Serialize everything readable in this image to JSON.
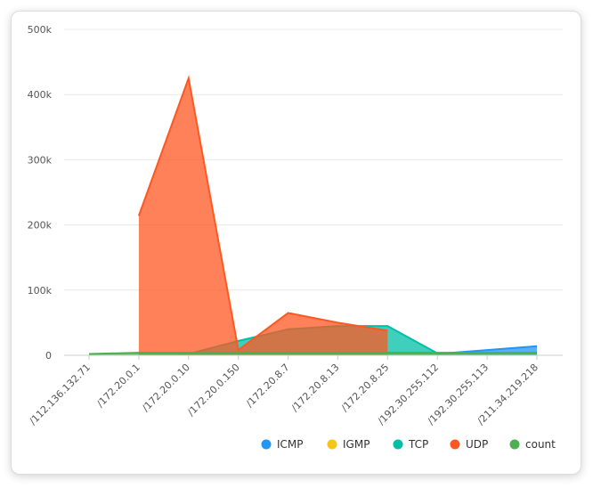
{
  "chart_data": {
    "type": "area",
    "categories": [
      "/112.136.132.71",
      "/172.20.0.1",
      "/172.20.0.10",
      "/172.20.0.150",
      "/172.20.8.7",
      "/172.20.8.13",
      "/172.20.8.25",
      "/192.30.255.112",
      "/192.30.255.113",
      "/211.34.219.218"
    ],
    "y_ticks": [
      "0",
      "100k",
      "200k",
      "300k",
      "400k",
      "500k"
    ],
    "ylim": [
      0,
      500000
    ],
    "grid": true,
    "legend_position": "bottom-right",
    "series": [
      {
        "name": "ICMP",
        "color": "#2196f3",
        "values": [
          null,
          null,
          null,
          null,
          null,
          null,
          null,
          2000,
          8000,
          14000
        ]
      },
      {
        "name": "IGMP",
        "color": "#f5c518",
        "values": [
          null,
          null,
          null,
          null,
          null,
          null,
          null,
          null,
          null,
          null
        ]
      },
      {
        "name": "TCP",
        "color": "#00bfa5",
        "values": [
          null,
          4000,
          2000,
          22000,
          40000,
          45000,
          45000,
          3000,
          null,
          null
        ]
      },
      {
        "name": "UDP",
        "color": "#ff5722",
        "values": [
          null,
          214000,
          425000,
          8000,
          65000,
          50000,
          38000,
          null,
          null,
          null
        ]
      },
      {
        "name": "count",
        "color": "#4caf50",
        "values": [
          2000,
          4000,
          4000,
          4000,
          4000,
          4000,
          4000,
          4000,
          4000,
          4000
        ]
      }
    ]
  }
}
